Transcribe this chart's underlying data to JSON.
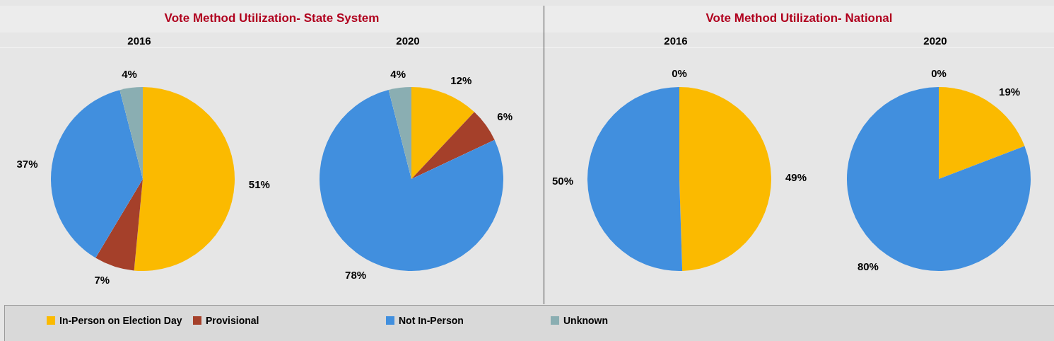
{
  "chart_data": [
    {
      "type": "pie",
      "title": "Vote Method Utilization- State System",
      "subtitle": "2016",
      "categories": [
        "In-Person on Election Day",
        "Provisional",
        "Not In-Person",
        "Unknown"
      ],
      "values": [
        51,
        7,
        37,
        4
      ],
      "value_labels": [
        "51%",
        "7%",
        "37%",
        "4%"
      ],
      "colors": [
        "#fbba00",
        "#a5402a",
        "#418fde",
        "#8aaeb2"
      ],
      "legend": "bottom"
    },
    {
      "type": "pie",
      "subtitle": "2020",
      "values": [
        12,
        6,
        78,
        4
      ],
      "value_labels": [
        "12%",
        "6%",
        "78%",
        "4%"
      ],
      "colors": [
        "#fbba00",
        "#a5402a",
        "#418fde",
        "#8aaeb2"
      ]
    },
    {
      "type": "pie",
      "title": "Vote Method Utilization- National",
      "subtitle": "2016",
      "values": [
        49,
        50,
        0
      ],
      "value_labels": [
        "49%",
        "50%",
        "0%"
      ],
      "colors": [
        "#fbba00",
        "#418fde",
        "#a5402a"
      ]
    },
    {
      "type": "pie",
      "subtitle": "2020",
      "values": [
        19,
        80,
        0
      ],
      "value_labels": [
        "19%",
        "80%",
        "0%"
      ],
      "colors": [
        "#fbba00",
        "#418fde",
        "#a5402a"
      ]
    }
  ]
}
